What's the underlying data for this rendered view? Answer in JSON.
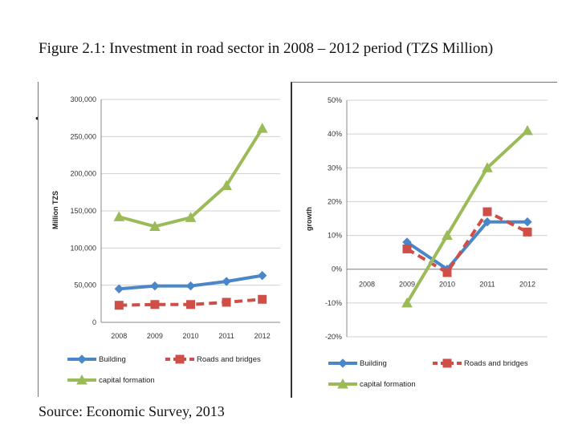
{
  "figure": {
    "title": "Figure  2.1:  Investment in road sector in 2008 – 2012 period  (TZS Million)",
    "source": "Source: Economic Survey, 2013",
    "bullet": "•"
  },
  "colors": {
    "building": "#4a86c8",
    "roads": "#cf4f48",
    "capital": "#9bbb59",
    "grid": "#d0d0d0",
    "axis": "#888888"
  },
  "chart_data": [
    {
      "type": "line",
      "title": "",
      "xlabel": "",
      "ylabel": "Million TZS",
      "categories": [
        "2008",
        "2009",
        "2010",
        "2011",
        "2012"
      ],
      "y_ticks": [
        "0",
        "50,000",
        "100,000",
        "150,000",
        "200,000",
        "250,000",
        "300,000"
      ],
      "ylim": [
        0,
        300000
      ],
      "grid": true,
      "legend_position": "bottom",
      "series": [
        {
          "name": "Building",
          "key": "building",
          "marker": "diamond",
          "dashed": false,
          "values": [
            45000,
            49000,
            49000,
            55000,
            63000
          ]
        },
        {
          "name": "Roads and bridges",
          "key": "roads",
          "marker": "square",
          "dashed": true,
          "values": [
            23000,
            24000,
            24000,
            27000,
            31000
          ]
        },
        {
          "name": "capital formation",
          "key": "capital",
          "marker": "triangle",
          "dashed": false,
          "values": [
            142000,
            129000,
            141000,
            184000,
            261000
          ]
        }
      ]
    },
    {
      "type": "line",
      "title": "",
      "xlabel": "",
      "ylabel": "growth",
      "categories": [
        "2008",
        "2009",
        "2010",
        "2011",
        "2012"
      ],
      "y_ticks": [
        "-20%",
        "-10%",
        "0%",
        "10%",
        "20%",
        "30%",
        "40%",
        "50%"
      ],
      "ylim": [
        -20,
        50
      ],
      "grid": true,
      "legend_position": "bottom",
      "series": [
        {
          "name": "Building",
          "key": "building",
          "marker": "diamond",
          "dashed": false,
          "values": [
            null,
            8,
            0,
            14,
            14
          ]
        },
        {
          "name": "Roads and bridges",
          "key": "roads",
          "marker": "square",
          "dashed": true,
          "values": [
            null,
            6,
            -1,
            17,
            11
          ]
        },
        {
          "name": "capital formation",
          "key": "capital",
          "marker": "triangle",
          "dashed": false,
          "values": [
            null,
            -10,
            10,
            30,
            41
          ]
        }
      ]
    }
  ]
}
